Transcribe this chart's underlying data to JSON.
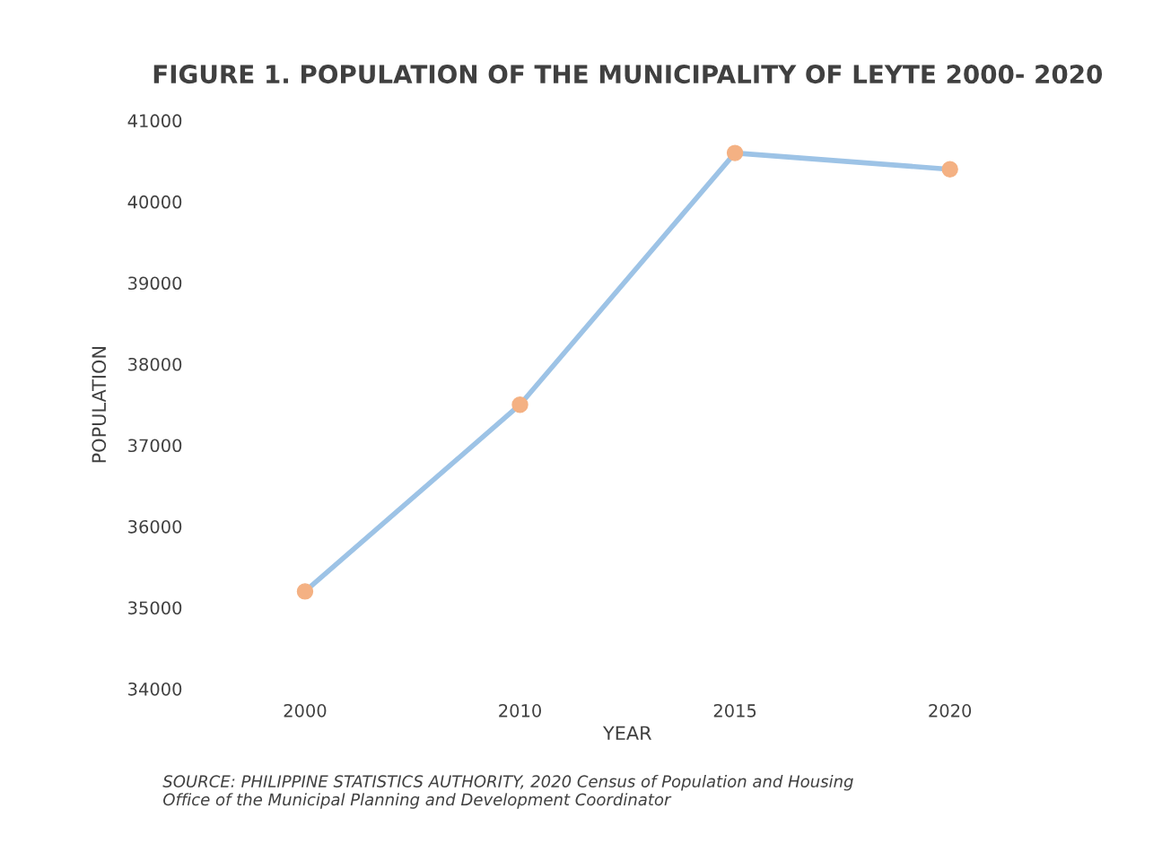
{
  "chart_data": {
    "type": "line",
    "title": "FIGURE 1. POPULATION OF THE MUNICIPALITY OF LEYTE 2000- 2020",
    "xlabel": "YEAR",
    "ylabel": "POPULATION",
    "categories": [
      "2000",
      "2010",
      "2015",
      "2020"
    ],
    "series": [
      {
        "color": "#9dc3e6",
        "colors": [
          "#f4b183",
          "#f4b183",
          "#f4b183",
          "#f4b183"
        ],
        "values": [
          35200,
          37500,
          40600,
          40400
        ]
      }
    ],
    "marker": "circle",
    "ylim": [
      34000,
      41000
    ],
    "yticks": [
      34000,
      35000,
      36000,
      37000,
      38000,
      39000,
      40000,
      41000
    ],
    "annotations": [
      "SOURCE: PHILIPPINE STATISTICS AUTHORITY, 2020 Census of Population and Housing\nOffice of the Municipal Planning and Development Coordinator"
    ]
  }
}
